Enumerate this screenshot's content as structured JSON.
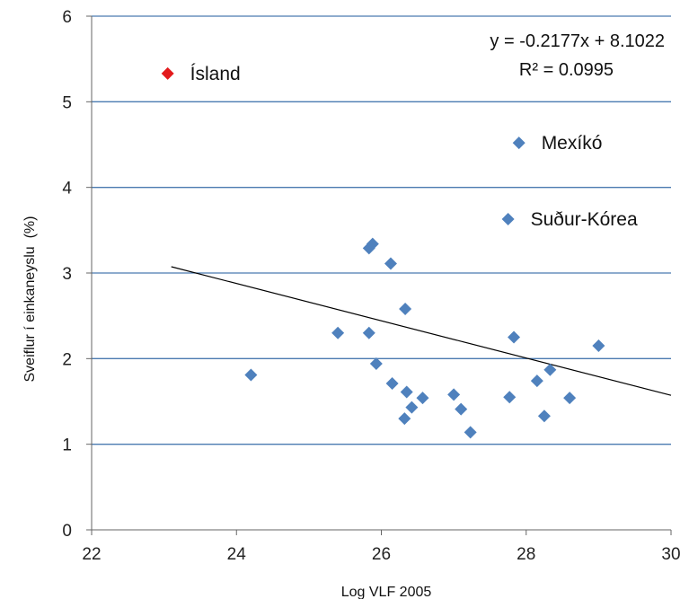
{
  "chart_data": {
    "type": "scatter",
    "xlabel": "Log VLF 2005",
    "ylabel": "Sveiflur í einkaneyslu  (%)",
    "xlim": [
      22,
      30
    ],
    "ylim": [
      0,
      6
    ],
    "xticks": [
      "22",
      "24",
      "26",
      "28",
      "30"
    ],
    "yticks": [
      "0",
      "1",
      "2",
      "3",
      "4",
      "5",
      "6"
    ],
    "grid": "horizontal",
    "colors": {
      "points": "#4f81bd",
      "highlight": "#e31a1c",
      "gridline": "#4a7ab0",
      "trendline": "#000000"
    },
    "series": [
      {
        "points": [
          {
            "x": 23.05,
            "y": 5.33,
            "label": "Ísland",
            "highlight": true
          },
          {
            "x": 27.9,
            "y": 4.52,
            "label": "Mexíkó"
          },
          {
            "x": 27.75,
            "y": 3.63,
            "label": "Suður-Kórea"
          },
          {
            "x": 24.2,
            "y": 1.81
          },
          {
            "x": 25.4,
            "y": 2.3
          },
          {
            "x": 25.83,
            "y": 3.29
          },
          {
            "x": 25.88,
            "y": 3.34
          },
          {
            "x": 25.83,
            "y": 2.3
          },
          {
            "x": 25.93,
            "y": 1.94
          },
          {
            "x": 26.13,
            "y": 3.11
          },
          {
            "x": 26.15,
            "y": 1.71
          },
          {
            "x": 26.33,
            "y": 2.58
          },
          {
            "x": 26.35,
            "y": 1.61
          },
          {
            "x": 26.32,
            "y": 1.3
          },
          {
            "x": 26.42,
            "y": 1.43
          },
          {
            "x": 26.57,
            "y": 1.54
          },
          {
            "x": 27.0,
            "y": 1.58
          },
          {
            "x": 27.1,
            "y": 1.41
          },
          {
            "x": 27.23,
            "y": 1.14
          },
          {
            "x": 27.77,
            "y": 1.55
          },
          {
            "x": 27.83,
            "y": 2.25
          },
          {
            "x": 28.15,
            "y": 1.74
          },
          {
            "x": 28.25,
            "y": 1.33
          },
          {
            "x": 28.33,
            "y": 1.87
          },
          {
            "x": 28.6,
            "y": 1.54
          },
          {
            "x": 29.0,
            "y": 2.15
          }
        ]
      }
    ],
    "trendline": {
      "slope": -0.2177,
      "intercept": 8.1022,
      "x_range": [
        23.1,
        30
      ],
      "equation": "y = -0.2177x + 8.1022",
      "r2": "R² = 0.0995"
    }
  }
}
